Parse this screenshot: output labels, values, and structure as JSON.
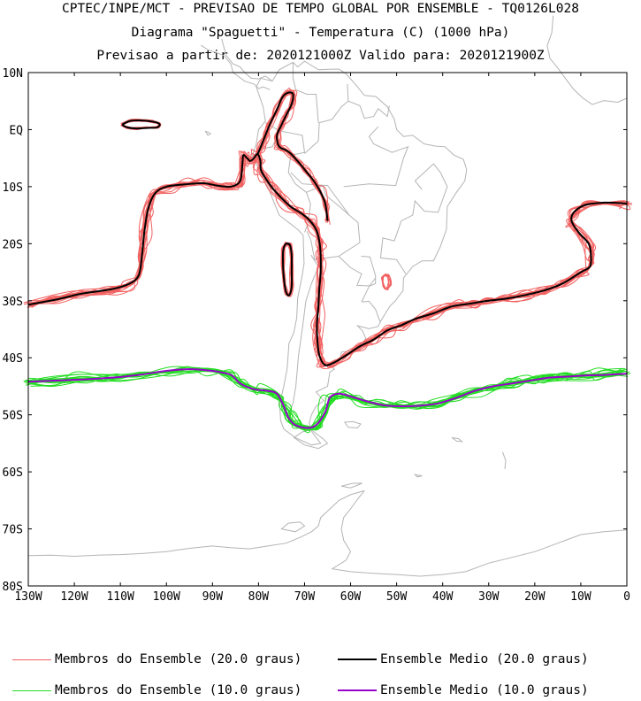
{
  "title": {
    "line1": "CPTEC/INPE/MCT - PREVISAO DE TEMPO GLOBAL POR ENSEMBLE - TQ0126L028",
    "line2": "Diagrama \"Spaguetti\" - Temperatura (C) (1000 hPa)",
    "line3": "Previsao a partir de: 2020121000Z  Valido para: 2020121900Z"
  },
  "axes": {
    "lat_labels": [
      "10N",
      "EQ",
      "10S",
      "20S",
      "30S",
      "40S",
      "50S",
      "60S",
      "70S",
      "80S"
    ],
    "lon_labels": [
      "130W",
      "120W",
      "110W",
      "100W",
      "90W",
      "80W",
      "70W",
      "60W",
      "50W",
      "40W",
      "30W",
      "20W",
      "10W",
      "0"
    ],
    "lat_range": [
      -80,
      10
    ],
    "lon_range": [
      -130,
      0
    ]
  },
  "legend": [
    {
      "label": "Membros do Ensemble (20.0 graus)",
      "color": "#f26060",
      "width": 1
    },
    {
      "label": "Ensemble Medio (20.0 graus)",
      "color": "#000000",
      "width": 2
    },
    {
      "label": "Membros do Ensemble (10.0 graus)",
      "color": "#22dd22",
      "width": 1
    },
    {
      "label": "Ensemble Medio (10.0 graus)",
      "color": "#9900cc",
      "width": 2
    }
  ],
  "colors": {
    "coastline": "#b4b4b4",
    "member20": "#f26060",
    "mean20": "#000000",
    "member10": "#22dd22",
    "mean10": "#9900cc"
  }
}
